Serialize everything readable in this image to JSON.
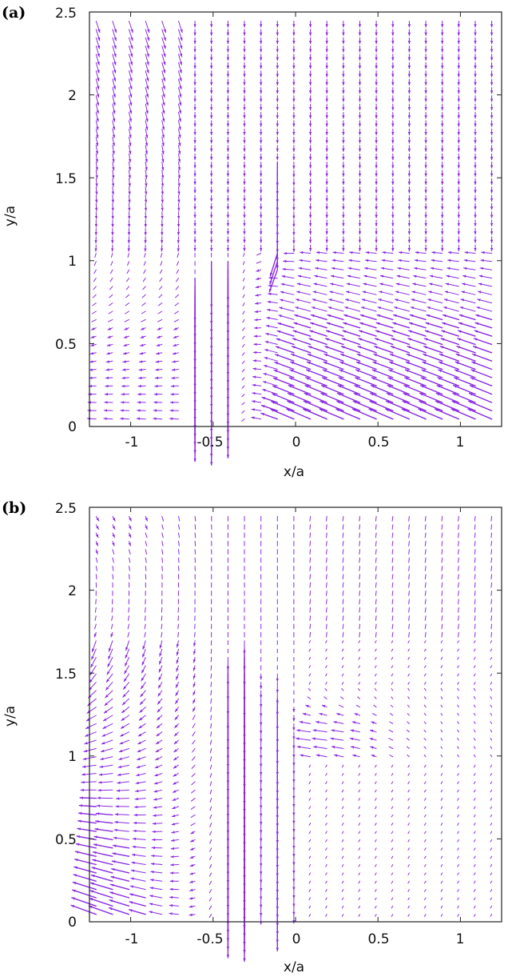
{
  "arrow_color": "#8a2be2",
  "chart_data": [
    {
      "type": "vector-field",
      "panel_label": "(a)",
      "xlabel": "x/a",
      "ylabel": "y/a",
      "xlim": [
        -1.25,
        1.25
      ],
      "ylim": [
        0,
        2.5
      ],
      "xticks": [
        -1,
        -0.5,
        0,
        0.5,
        1
      ],
      "yticks": [
        0,
        0.5,
        1,
        1.5,
        2,
        2.5
      ],
      "xtick_labels": [
        "-1",
        "-0.5",
        "0",
        "0.5",
        "1"
      ],
      "ytick_labels": [
        "0",
        "0.5",
        "1",
        "1.5",
        "2",
        "2.5"
      ],
      "grid": false,
      "sampling": {
        "x_spacing": 0.1,
        "y_spacing": 0.05
      },
      "flow_features": [
        {
          "feature": "downward jet",
          "x": -0.62,
          "y_range": [
            0,
            0.9
          ]
        },
        {
          "feature": "downward jet",
          "x": -0.52,
          "y_range": [
            0,
            1.0
          ]
        },
        {
          "feature": "downward jet",
          "x": -0.42,
          "y_range": [
            0,
            1.0
          ]
        },
        {
          "feature": "downward jet",
          "x": -0.08,
          "y_range": [
            0.9,
            1.6
          ]
        },
        {
          "feature": "strong leftward shear flow",
          "region": "x > -0.3, y < 1.05"
        },
        {
          "feature": "weak downward flow",
          "region": "y > 1.1"
        }
      ]
    },
    {
      "type": "vector-field",
      "panel_label": "(b)",
      "xlabel": "x/a",
      "ylabel": "y/a",
      "xlim": [
        -1.25,
        1.25
      ],
      "ylim": [
        0,
        2.5
      ],
      "xticks": [
        -1,
        -0.5,
        0,
        0.5,
        1
      ],
      "yticks": [
        0,
        0.5,
        1,
        1.5,
        2,
        2.5
      ],
      "xtick_labels": [
        "-1",
        "-0.5",
        "0",
        "0.5",
        "1"
      ],
      "ytick_labels": [
        "0",
        "0.5",
        "1",
        "1.5",
        "2",
        "2.5"
      ],
      "grid": false,
      "sampling": {
        "x_spacing": 0.1,
        "y_spacing": 0.05
      },
      "flow_features": [
        {
          "feature": "downward jet",
          "x": -0.42,
          "y_range": [
            0,
            1.6
          ]
        },
        {
          "feature": "downward jet",
          "x": -0.3,
          "y_range": [
            0,
            1.7
          ]
        },
        {
          "feature": "downward jet",
          "x": -0.15,
          "y_range": [
            0,
            1.5
          ]
        },
        {
          "feature": "downward jet",
          "x": -0.07,
          "y_range": [
            0,
            1.3
          ]
        },
        {
          "feature": "leftward spreading flow",
          "region": "x < 0, y < 1.0"
        },
        {
          "feature": "near-stagnant region",
          "region": "x > 0, y < 1.0"
        },
        {
          "feature": "weak downward flow",
          "region": "y > 1.4"
        }
      ]
    }
  ]
}
